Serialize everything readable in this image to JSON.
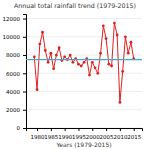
{
  "chart_data": {
    "type": "line",
    "title": "Annual total rainfall trend (1979-2015)",
    "x_label": "Years (1979-2015)",
    "x": [
      1979,
      1980,
      1981,
      1982,
      1983,
      1984,
      1985,
      1986,
      1987,
      1988,
      1989,
      1990,
      1991,
      1992,
      1993,
      1994,
      1995,
      1996,
      1997,
      1998,
      1999,
      2000,
      2001,
      2002,
      2003,
      2004,
      2005,
      2006,
      2007,
      2008,
      2009,
      2010,
      2011,
      2012,
      2013,
      2014,
      2015
    ],
    "values": [
      7800,
      4200,
      9200,
      10500,
      8500,
      7200,
      8200,
      6500,
      8000,
      8800,
      7400,
      7800,
      7500,
      8000,
      7200,
      7600,
      7000,
      6800,
      7200,
      7600,
      5800,
      7200,
      6600,
      6000,
      8200,
      11200,
      9800,
      7000,
      6800,
      11500,
      10200,
      2800,
      6200,
      10000,
      8200,
      9400,
      7600
    ],
    "color": "#dd2222",
    "marker": "circle",
    "reference_line": {
      "value": 7500,
      "color": "#44aacc"
    },
    "xlim": [
      1976,
      2018
    ],
    "xticks": [
      1980,
      1985,
      1990,
      1995,
      2000,
      2005,
      2010,
      2015
    ],
    "ylim": [
      0,
      12500
    ],
    "yticks": [
      0,
      2000,
      4000,
      6000,
      8000,
      10000,
      12000
    ],
    "grid": true
  }
}
